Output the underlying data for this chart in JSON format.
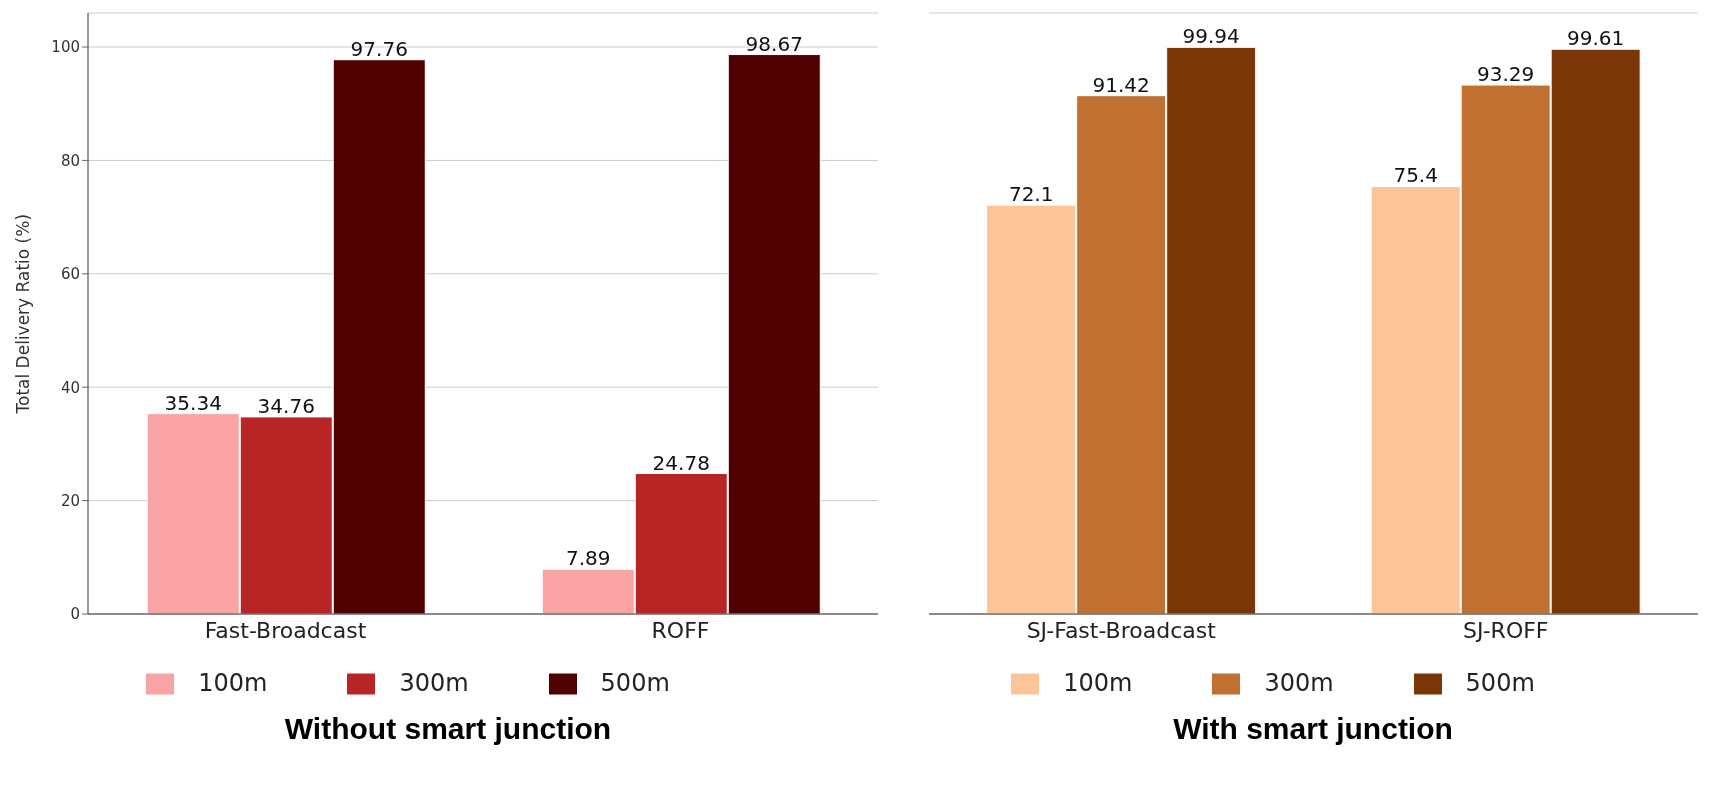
{
  "chart_data": [
    {
      "type": "bar",
      "title": "Without smart junction",
      "ylabel": "Total Delivery Ratio (%)",
      "categories": [
        "Fast-Broadcast",
        "ROFF"
      ],
      "series": [
        {
          "name": "100m",
          "color": "#f9a3a4",
          "values": [
            35.34,
            7.89
          ]
        },
        {
          "name": "300m",
          "color": "#b82525",
          "values": [
            34.76,
            24.78
          ]
        },
        {
          "name": "500m",
          "color": "#4f0000",
          "values": [
            97.76,
            98.67
          ]
        }
      ],
      "ylim": [
        0,
        106
      ],
      "yticks": [
        0,
        20,
        40,
        60,
        80,
        100
      ],
      "grid": "y",
      "legend": "bottom",
      "data_labels": true
    },
    {
      "type": "bar",
      "title": "With smart junction",
      "categories": [
        "SJ-Fast-Broadcast",
        "SJ-ROFF"
      ],
      "series": [
        {
          "name": "100m",
          "color": "#fbc499",
          "values": [
            72.1,
            75.4
          ]
        },
        {
          "name": "300m",
          "color": "#c07030",
          "values": [
            91.42,
            93.29
          ]
        },
        {
          "name": "500m",
          "color": "#7a3606",
          "values": [
            99.94,
            99.61
          ]
        }
      ],
      "ylim": [
        0,
        106
      ],
      "yticks": [
        0,
        20,
        40,
        60,
        80,
        100
      ],
      "grid": "y",
      "legend": "bottom",
      "data_labels": true,
      "tick_labels": "x"
    }
  ]
}
